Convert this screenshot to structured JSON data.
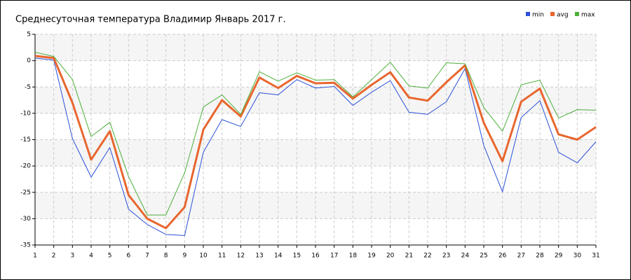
{
  "chart_data": {
    "type": "line",
    "title": "Среднесуточная температура Владимир  Январь 2017 г.",
    "x": [
      1,
      2,
      3,
      4,
      5,
      6,
      7,
      8,
      9,
      10,
      11,
      12,
      13,
      14,
      15,
      16,
      17,
      18,
      19,
      20,
      21,
      22,
      23,
      24,
      25,
      26,
      27,
      28,
      29,
      30,
      31
    ],
    "xlim": [
      1,
      31
    ],
    "ylim": [
      -35,
      5
    ],
    "yticks": [
      -35,
      -30,
      -25,
      -20,
      -15,
      -10,
      -5,
      0,
      5
    ],
    "grid": true,
    "legend": "top-right",
    "series": [
      {
        "name": "min",
        "color": "#2b50d8",
        "width": 1,
        "values": [
          0.5,
          0.1,
          -14.8,
          -22.1,
          -16.5,
          -28.2,
          -31.1,
          -33,
          -33.2,
          -17.4,
          -11.2,
          -12.5,
          -6.1,
          -6.5,
          -3.6,
          -5.2,
          -4.9,
          -8.5,
          -6,
          -3.8,
          -9.8,
          -10.2,
          -7.8,
          -1.5,
          -16.1,
          -24.9,
          -10.8,
          -7.6,
          -17.4,
          -19.4,
          -15.4
        ]
      },
      {
        "name": "avg",
        "color": "#e8662e",
        "width": 3,
        "values": [
          0.9,
          0.5,
          -8,
          -18.8,
          -13.4,
          -25.5,
          -30,
          -31.8,
          -27.8,
          -13.1,
          -7.5,
          -10.6,
          -3.2,
          -5.2,
          -2.9,
          -4.3,
          -4.2,
          -7.2,
          -4.6,
          -2.2,
          -7,
          -7.6,
          -4.1,
          -0.9,
          -11.8,
          -19.1,
          -7.8,
          -5.3,
          -14,
          -15,
          -12.6
        ]
      },
      {
        "name": "max",
        "color": "#4caf3a",
        "width": 1,
        "values": [
          1.6,
          0.8,
          -3.6,
          -14.4,
          -11.7,
          -22,
          -29.3,
          -29.3,
          -21.3,
          -8.8,
          -6.5,
          -10.2,
          -2.1,
          -3.9,
          -2.3,
          -3.7,
          -3.6,
          -6.9,
          -3.6,
          -0.3,
          -4.8,
          -5.2,
          -0.4,
          -0.6,
          -8.9,
          -13.4,
          -4.6,
          -3.7,
          -10.9,
          -9.3,
          -9.4
        ]
      }
    ]
  }
}
